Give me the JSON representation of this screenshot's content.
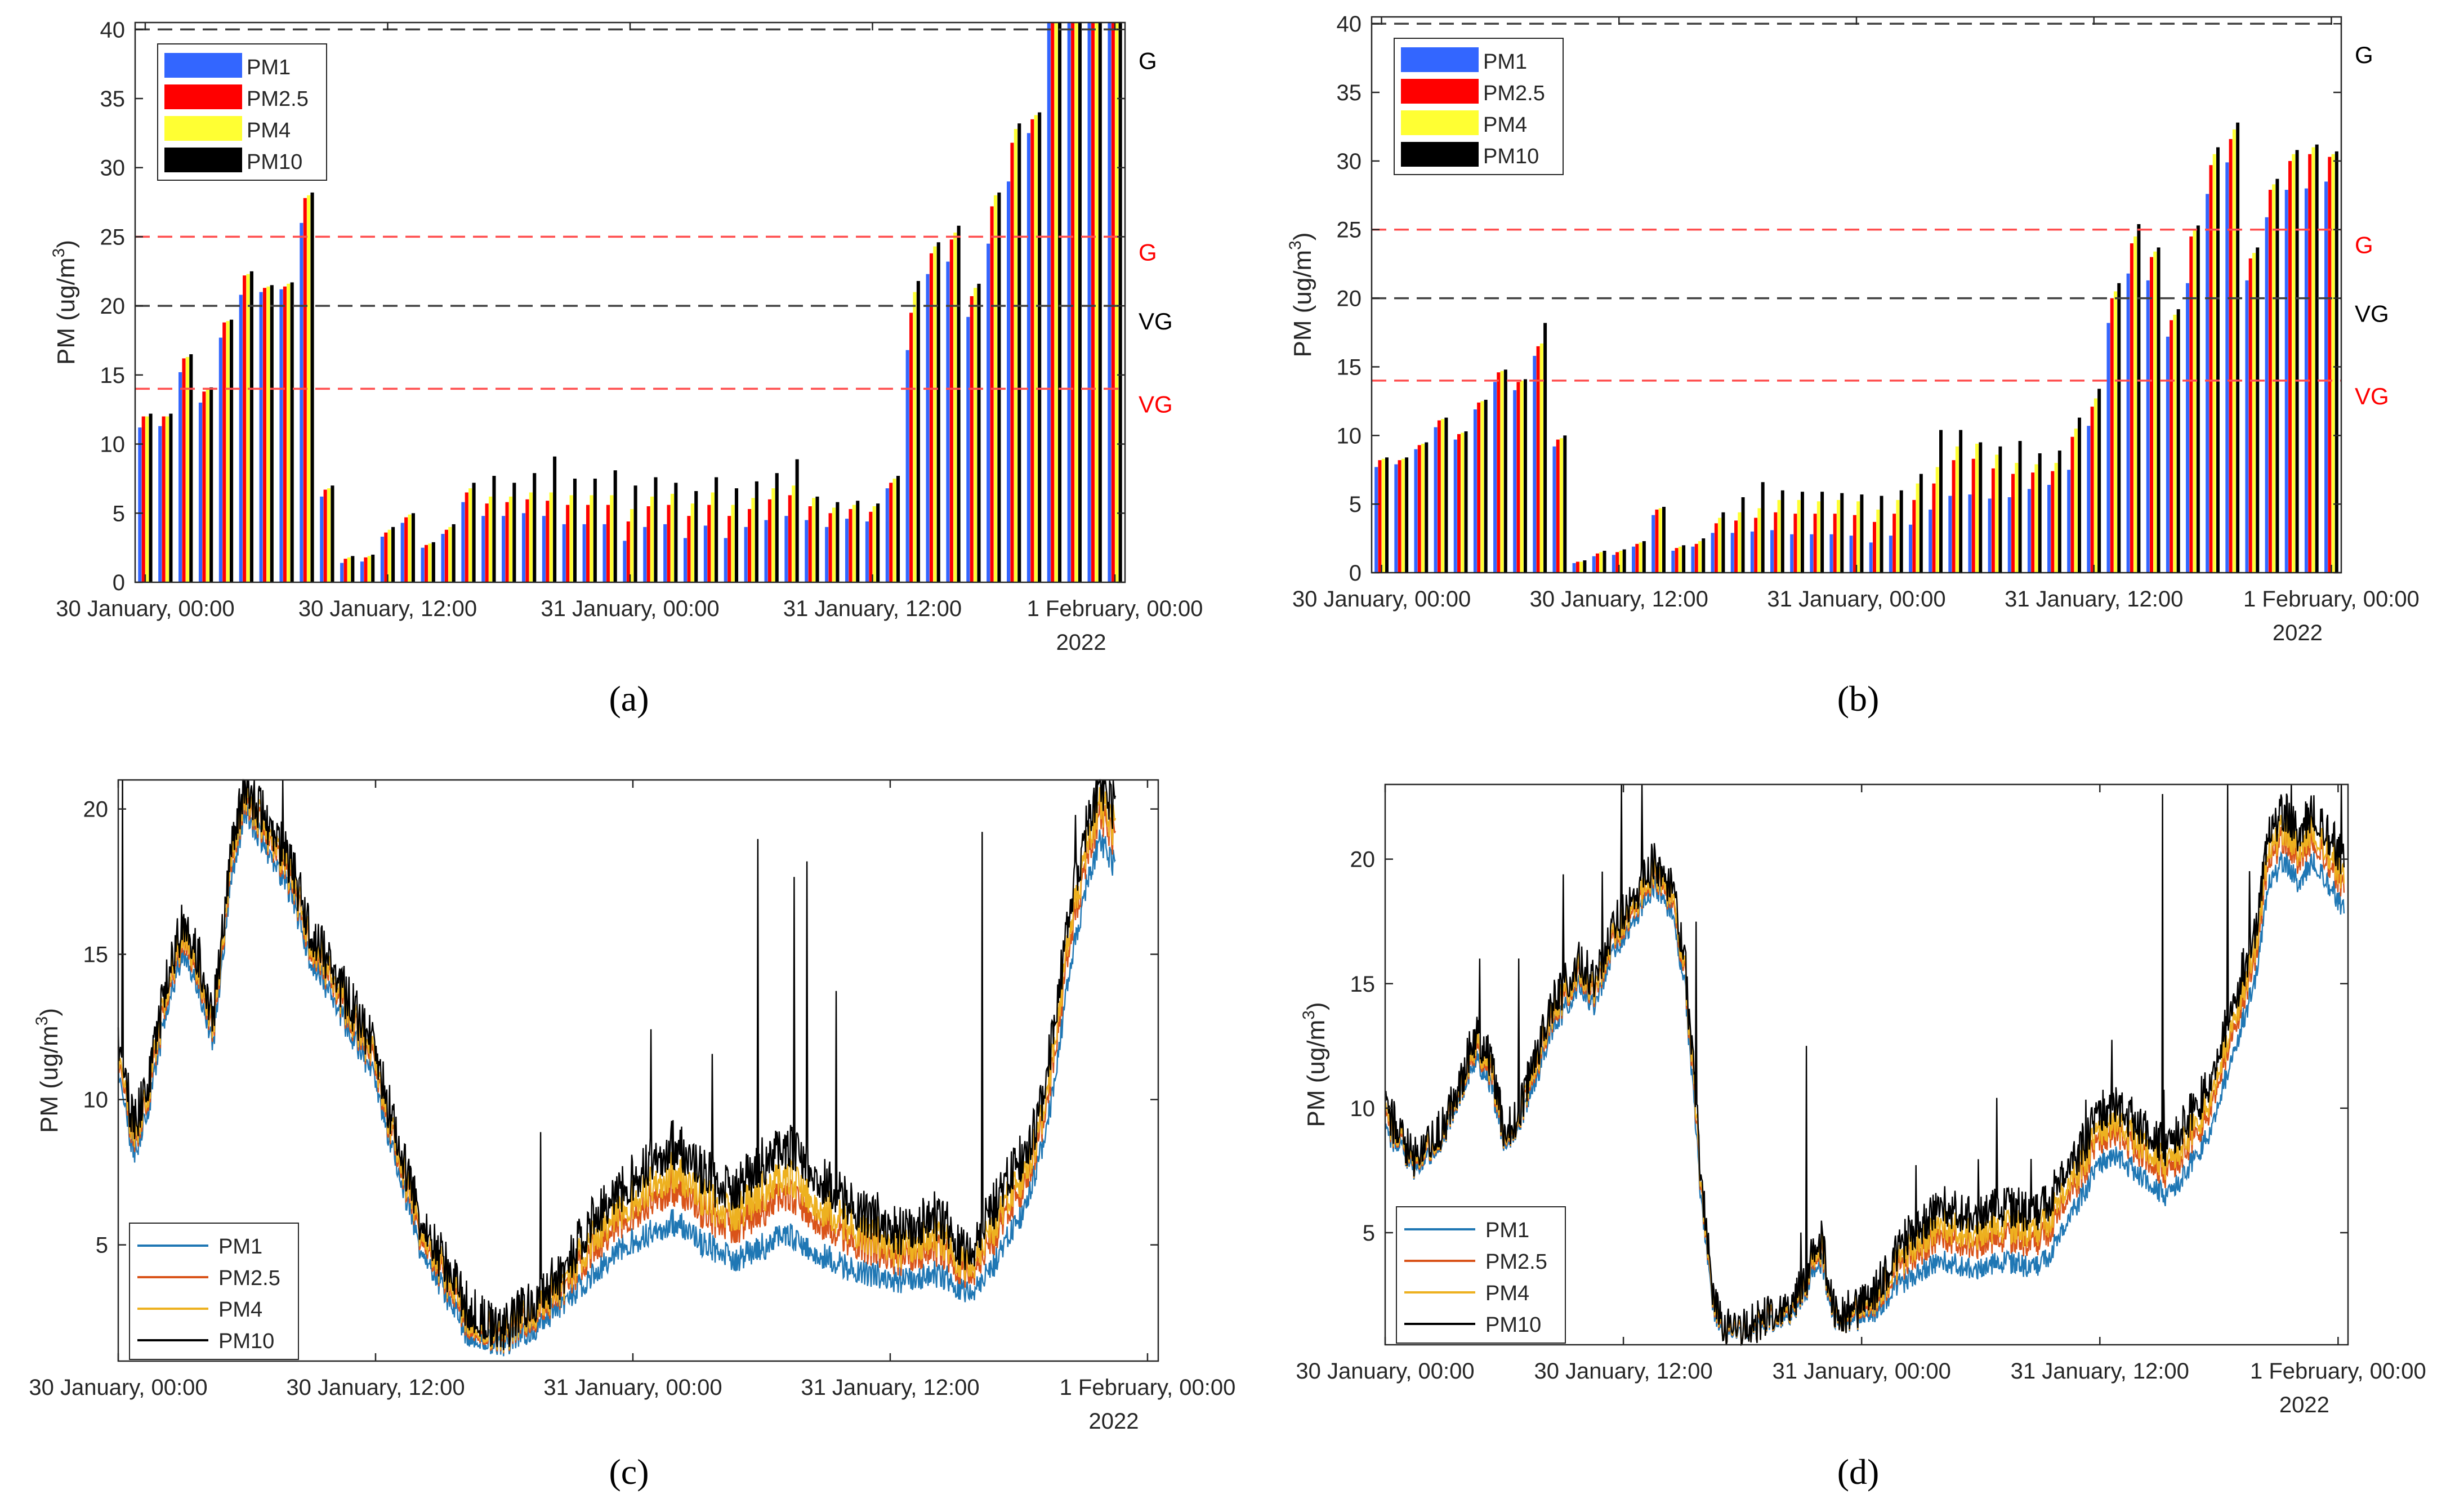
{
  "figure": {
    "background": "#ffffff",
    "axis_color": "#262626",
    "series_colors_bar": [
      "#3366ff",
      "#ff0000",
      "#ffff33",
      "#000000"
    ],
    "series_colors_line": [
      "#1f77b4",
      "#d95319",
      "#edb120",
      "#000000"
    ],
    "guideline_red": "#ff4d4d",
    "guideline_black": "#404040"
  },
  "chart_data": [
    {
      "id": "a",
      "type": "bar",
      "panel_label": "(a)",
      "ylabel": "PM (ug/m",
      "ylabel_sup": "3",
      "ylabel_close": ")",
      "ylim": [
        0,
        40.5
      ],
      "yticks": [
        0,
        5,
        10,
        15,
        20,
        25,
        30,
        35,
        40
      ],
      "xticks": [
        "30 January, 00:00",
        "30 January, 12:00",
        "31 January, 00:00",
        "31 January, 12:00",
        "1 February, 00:00"
      ],
      "xtick_positions_hours": [
        0,
        12,
        24,
        36,
        48
      ],
      "x_hours_range": [
        -0.5,
        48.5
      ],
      "year_label": "2022",
      "legend": [
        "PM1",
        "PM2.5",
        "PM4",
        "PM10"
      ],
      "guidelines": [
        {
          "y": 40,
          "label": "G",
          "color": "black"
        },
        {
          "y": 25,
          "label": "G",
          "color": "red"
        },
        {
          "y": 20,
          "label": "VG",
          "color": "black"
        },
        {
          "y": 14,
          "label": "VG",
          "color": "red"
        }
      ],
      "hours": [
        0,
        1,
        2,
        3,
        4,
        5,
        6,
        7,
        8,
        9,
        10,
        11,
        12,
        13,
        14,
        15,
        16,
        17,
        18,
        19,
        20,
        21,
        22,
        23,
        24,
        25,
        26,
        27,
        28,
        29,
        30,
        31,
        32,
        33,
        34,
        35,
        36,
        37,
        38,
        39,
        40,
        41,
        42,
        43,
        44,
        45,
        46,
        47,
        48
      ],
      "series": [
        {
          "name": "PM1",
          "values": [
            11.2,
            11.3,
            15.2,
            13.0,
            17.7,
            20.8,
            21.0,
            21.2,
            26.0,
            6.2,
            1.4,
            1.5,
            3.3,
            4.3,
            2.5,
            3.5,
            5.8,
            4.8,
            4.8,
            5.0,
            4.8,
            4.2,
            4.2,
            4.2,
            3.0,
            4.0,
            4.2,
            3.2,
            4.1,
            3.2,
            4.0,
            4.5,
            4.8,
            4.5,
            4.0,
            4.6,
            4.4,
            6.8,
            16.8,
            22.3,
            23.2,
            19.2,
            24.5,
            29.0,
            32.5,
            40.5,
            40.5,
            40.5,
            40.5
          ]
        },
        {
          "name": "PM2.5",
          "values": [
            12.0,
            12.0,
            16.2,
            13.8,
            18.8,
            22.2,
            21.3,
            21.4,
            27.8,
            6.7,
            1.7,
            1.8,
            3.6,
            4.7,
            2.7,
            3.8,
            6.5,
            5.7,
            5.8,
            6.0,
            5.9,
            5.6,
            5.6,
            5.6,
            4.4,
            5.5,
            5.6,
            4.8,
            5.6,
            4.8,
            5.3,
            6.0,
            6.3,
            5.5,
            5.0,
            5.3,
            5.1,
            7.2,
            19.5,
            23.8,
            24.8,
            20.7,
            27.2,
            31.8,
            33.5,
            40.5,
            40.5,
            40.5,
            40.5
          ]
        },
        {
          "name": "PM4",
          "values": [
            12.0,
            12.0,
            16.3,
            14.0,
            18.9,
            22.3,
            21.4,
            21.6,
            28.0,
            6.8,
            1.8,
            1.9,
            3.8,
            4.9,
            2.8,
            4.0,
            6.8,
            6.2,
            6.2,
            6.5,
            6.5,
            6.3,
            6.3,
            6.3,
            5.3,
            6.2,
            6.4,
            5.7,
            6.5,
            5.6,
            6.1,
            6.8,
            7.0,
            6.1,
            5.4,
            5.6,
            5.5,
            7.5,
            21.0,
            24.3,
            25.3,
            21.3,
            28.0,
            32.8,
            33.8,
            40.5,
            40.5,
            40.5,
            40.5
          ]
        },
        {
          "name": "PM10",
          "values": [
            12.2,
            12.2,
            16.5,
            14.1,
            19.0,
            22.5,
            21.5,
            21.7,
            28.2,
            7.0,
            1.9,
            2.0,
            4.0,
            5.0,
            2.9,
            4.2,
            7.2,
            7.7,
            7.2,
            7.9,
            9.1,
            7.5,
            7.5,
            8.1,
            7.0,
            7.6,
            7.2,
            6.6,
            7.6,
            6.8,
            7.3,
            7.9,
            8.9,
            6.2,
            5.8,
            5.9,
            5.7,
            7.7,
            21.8,
            24.6,
            25.8,
            21.6,
            28.2,
            33.2,
            34.0,
            40.5,
            40.5,
            40.5,
            40.5
          ]
        }
      ]
    },
    {
      "id": "b",
      "type": "bar",
      "panel_label": "(b)",
      "ylabel": "PM (ug/m",
      "ylabel_sup": "3",
      "ylabel_close": ")",
      "ylim": [
        0,
        40.5
      ],
      "yticks": [
        0,
        5,
        10,
        15,
        20,
        25,
        30,
        35,
        40
      ],
      "xticks": [
        "30 January, 00:00",
        "30 January, 12:00",
        "31 January, 00:00",
        "31 January, 12:00",
        "1 February, 00:00"
      ],
      "xtick_positions_hours": [
        0,
        12,
        24,
        36,
        48
      ],
      "x_hours_range": [
        -0.5,
        48.5
      ],
      "year_label": "2022",
      "legend": [
        "PM1",
        "PM2.5",
        "PM4",
        "PM10"
      ],
      "guidelines": [
        {
          "y": 40,
          "label": "G",
          "color": "black"
        },
        {
          "y": 25,
          "label": "G",
          "color": "red"
        },
        {
          "y": 20,
          "label": "VG",
          "color": "black"
        },
        {
          "y": 14,
          "label": "VG",
          "color": "red"
        }
      ],
      "hours": [
        0,
        1,
        2,
        3,
        4,
        5,
        6,
        7,
        8,
        9,
        10,
        11,
        12,
        13,
        14,
        15,
        16,
        17,
        18,
        19,
        20,
        21,
        22,
        23,
        24,
        25,
        26,
        27,
        28,
        29,
        30,
        31,
        32,
        33,
        34,
        35,
        36,
        37,
        38,
        39,
        40,
        41,
        42,
        43,
        44,
        45,
        46,
        47,
        48
      ],
      "series": [
        {
          "name": "PM1",
          "values": [
            7.7,
            7.9,
            9.0,
            10.6,
            9.7,
            11.9,
            13.9,
            13.3,
            15.8,
            9.2,
            0.7,
            1.2,
            1.3,
            1.9,
            4.2,
            1.6,
            1.9,
            2.9,
            2.9,
            3.0,
            3.1,
            2.8,
            2.8,
            2.8,
            2.7,
            2.2,
            2.7,
            3.5,
            4.6,
            5.6,
            5.7,
            5.4,
            5.5,
            6.1,
            6.4,
            7.5,
            10.7,
            18.2,
            21.8,
            21.3,
            17.2,
            21.1,
            27.6,
            29.9,
            21.3,
            25.9,
            27.9,
            28.0,
            28.5
          ]
        },
        {
          "name": "PM2.5",
          "values": [
            8.2,
            8.2,
            9.3,
            11.1,
            10.1,
            12.4,
            14.6,
            13.9,
            16.5,
            9.7,
            0.8,
            1.4,
            1.5,
            2.1,
            4.6,
            1.8,
            2.1,
            3.6,
            3.8,
            4.0,
            4.4,
            4.3,
            4.3,
            4.3,
            4.2,
            3.7,
            4.3,
            5.3,
            6.5,
            8.2,
            8.3,
            7.6,
            7.2,
            7.3,
            7.4,
            9.9,
            12.1,
            20.0,
            24.0,
            23.0,
            18.4,
            24.5,
            29.7,
            31.6,
            22.9,
            27.9,
            30.0,
            30.5,
            30.3
          ]
        },
        {
          "name": "PM4",
          "values": [
            8.3,
            8.3,
            9.4,
            11.2,
            10.2,
            12.5,
            14.7,
            14.0,
            16.7,
            9.8,
            0.8,
            1.5,
            1.6,
            2.2,
            4.7,
            1.9,
            2.3,
            4.0,
            4.4,
            4.7,
            5.3,
            5.3,
            5.2,
            5.3,
            5.2,
            4.6,
            5.3,
            6.5,
            7.7,
            9.2,
            9.4,
            8.6,
            8.0,
            7.9,
            8.0,
            10.5,
            12.7,
            20.5,
            24.5,
            23.4,
            18.8,
            25.0,
            30.5,
            32.3,
            23.3,
            28.3,
            30.5,
            31.0,
            30.5
          ]
        },
        {
          "name": "PM10",
          "values": [
            8.4,
            8.4,
            9.5,
            11.3,
            10.3,
            12.6,
            14.8,
            14.1,
            18.2,
            10.0,
            0.9,
            1.6,
            1.7,
            2.3,
            4.8,
            2.0,
            2.5,
            4.4,
            5.5,
            6.6,
            6.0,
            5.9,
            5.9,
            5.8,
            5.7,
            5.6,
            6.0,
            7.2,
            10.4,
            10.4,
            9.5,
            9.2,
            9.6,
            8.7,
            8.9,
            11.3,
            13.4,
            21.1,
            25.4,
            23.7,
            19.2,
            25.3,
            31.0,
            32.8,
            23.7,
            28.7,
            30.8,
            31.2,
            30.7
          ]
        }
      ]
    },
    {
      "id": "c",
      "type": "line",
      "panel_label": "(c)",
      "ylabel": "PM (ug/m",
      "ylabel_sup": "3",
      "ylabel_close": ")",
      "ylim": [
        1,
        21
      ],
      "yticks": [
        5,
        10,
        15,
        20
      ],
      "xticks": [
        "30 January, 00:00",
        "30 January, 12:00",
        "31 January, 00:00",
        "31 January, 12:00",
        "1 February, 00:00"
      ],
      "xtick_positions_hours": [
        0,
        12,
        24,
        36,
        48
      ],
      "x_hours_range": [
        0,
        48.5
      ],
      "data_end_hour": 46.5,
      "year_label": "2022",
      "legend": [
        "PM1",
        "PM2.5",
        "PM4",
        "PM10"
      ],
      "pm10_hourly": [
        12,
        9,
        11,
        14,
        16,
        15,
        13,
        18,
        21,
        20,
        19,
        18,
        16,
        15,
        14,
        13,
        12,
        10,
        8,
        6,
        5,
        4,
        3,
        2.5,
        2,
        2.5,
        3,
        3.5,
        4,
        5,
        6,
        6.5,
        7,
        7.5,
        8,
        8.5,
        8,
        7.5,
        7,
        7,
        7.5,
        8,
        8.5,
        8,
        7.5,
        7,
        6.5,
        6,
        6,
        5.5,
        5.5,
        6,
        6,
        5,
        5,
        6,
        7,
        8,
        9,
        12,
        16,
        19,
        21,
        20
      ],
      "pm1_hourly": [
        11,
        8,
        10,
        13,
        15,
        14,
        12,
        17,
        20,
        19,
        18,
        17,
        15,
        14,
        13,
        12,
        11,
        9,
        7,
        5,
        4,
        3,
        2,
        1.8,
        1.5,
        1.8,
        2,
        2.5,
        3,
        3.5,
        4,
        4.5,
        5,
        5.2,
        5.5,
        5.8,
        5.5,
        5,
        4.8,
        4.5,
        4.8,
        5,
        5.5,
        5,
        4.8,
        4.5,
        4.2,
        4,
        4,
        3.8,
        3.8,
        4,
        4,
        3.5,
        3.5,
        4,
        5,
        6,
        7.5,
        10,
        14,
        17,
        19,
        18
      ]
    },
    {
      "id": "d",
      "type": "line",
      "panel_label": "(d)",
      "ylabel": "PM (ug/m",
      "ylabel_sup": "3",
      "ylabel_close": ")",
      "ylim": [
        0.5,
        23
      ],
      "yticks": [
        5,
        10,
        15,
        20
      ],
      "xticks": [
        "30 January, 00:00",
        "30 January, 12:00",
        "31 January, 00:00",
        "31 January, 12:00",
        "1 February, 00:00"
      ],
      "xtick_positions_hours": [
        0,
        12,
        24,
        36,
        48
      ],
      "x_hours_range": [
        0,
        48.5
      ],
      "data_end_hour": 48.3,
      "year_label": "2022",
      "legend": [
        "PM1",
        "PM2.5",
        "PM4",
        "PM10"
      ],
      "pm10_hourly": [
        10,
        9,
        8,
        8.5,
        9.5,
        11,
        13,
        12,
        9,
        10,
        12,
        14,
        15,
        16,
        15,
        17,
        18,
        19,
        20,
        19,
        16,
        8,
        2,
        1,
        1.2,
        1.5,
        1.8,
        2,
        3,
        5,
        2,
        1.8,
        2.2,
        3,
        4,
        5,
        5.5,
        6,
        6,
        5.8,
        5.8,
        6,
        6,
        5.8,
        6,
        7,
        8,
        9,
        10,
        10,
        9.5,
        9,
        8.5,
        9,
        10,
        11,
        13,
        15,
        17,
        21,
        22,
        21,
        22,
        21,
        20
      ],
      "pm1_hourly": [
        9,
        8.5,
        7.5,
        8,
        9,
        10.5,
        12,
        11,
        8.5,
        9.5,
        11,
        13,
        14,
        15,
        14,
        16,
        17,
        18,
        19,
        18,
        15,
        7,
        1.5,
        0.8,
        1,
        1.2,
        1.4,
        1.6,
        2.5,
        4,
        1.6,
        1.4,
        1.6,
        2,
        2.8,
        3.2,
        3.6,
        3.8,
        3.8,
        3.6,
        3.6,
        3.8,
        3.8,
        3.6,
        3.8,
        4.8,
        6,
        7,
        8,
        8,
        7.5,
        7,
        6.5,
        7,
        8,
        9,
        11,
        13,
        15,
        19,
        20,
        19,
        20,
        19,
        18
      ]
    }
  ]
}
